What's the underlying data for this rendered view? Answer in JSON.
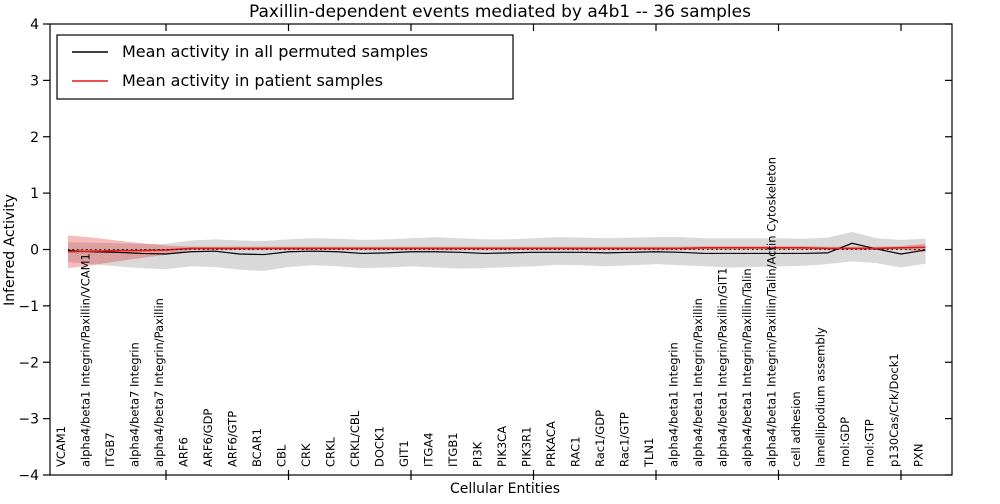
{
  "title": "Paxillin-dependent events mediated by a4b1 -- 36 samples",
  "chart_data": {
    "type": "line",
    "title": "Paxillin-dependent events mediated by a4b1 -- 36 samples",
    "xlabel": "Cellular Entities",
    "ylabel": "Inferred Activity",
    "ylim": [
      -4,
      4
    ],
    "yticks": [
      -4,
      -3,
      -2,
      -1,
      0,
      1,
      2,
      3,
      4
    ],
    "xtick_category_indices": [
      4,
      9,
      14,
      19,
      24,
      29,
      34
    ],
    "grid": false,
    "legend_position": "upper left",
    "zero_line": {
      "y": 0,
      "style": "dotted",
      "color": "#000000"
    },
    "categories": [
      "VCAM1",
      "alpha4/beta1 Integrin/Paxillin/VCAM1",
      "ITGB7",
      "alpha4/beta7 Integrin",
      "alpha4/beta7 Integrin/Paxillin",
      "ARF6",
      "ARF6/GDP",
      "ARF6/GTP",
      "BCAR1",
      "CBL",
      "CRK",
      "CRKL",
      "CRKL/CBL",
      "DOCK1",
      "GIT1",
      "ITGA4",
      "ITGB1",
      "PI3K",
      "PIK3CA",
      "PIK3R1",
      "PRKACA",
      "RAC1",
      "Rac1/GDP",
      "Rac1/GTP",
      "TLN1",
      "alpha4/beta1 Integrin",
      "alpha4/beta1 Integrin/Paxillin",
      "alpha4/beta1 Integrin/Paxillin/GIT1",
      "alpha4/beta1 Integrin/Paxillin/Talin",
      "alpha4/beta1 Integrin/Paxillin/Talin/Actin Cytoskeleton",
      "cell adhesion",
      "lamellipodium assembly",
      "mol:GDP",
      "mol:GTP",
      "p130Cas/Crk/Dock1",
      "PXN"
    ],
    "series": [
      {
        "name": "Mean activity in all permuted samples",
        "color": "#000000",
        "line_width": 1.2,
        "band_color": "rgba(128,128,128,0.30)",
        "values": [
          -0.02,
          -0.04,
          -0.05,
          -0.07,
          -0.08,
          -0.04,
          -0.03,
          -0.08,
          -0.09,
          -0.04,
          -0.03,
          -0.04,
          -0.07,
          -0.06,
          -0.04,
          -0.04,
          -0.05,
          -0.07,
          -0.06,
          -0.05,
          -0.05,
          -0.05,
          -0.06,
          -0.05,
          -0.04,
          -0.05,
          -0.07,
          -0.07,
          -0.07,
          -0.07,
          -0.07,
          -0.06,
          0.11,
          0.01,
          -0.08,
          -0.01
        ],
        "band_upper": [
          0.13,
          0.12,
          0.11,
          0.1,
          0.1,
          0.16,
          0.18,
          0.16,
          0.15,
          0.18,
          0.2,
          0.19,
          0.17,
          0.18,
          0.2,
          0.22,
          0.2,
          0.18,
          0.18,
          0.2,
          0.22,
          0.21,
          0.2,
          0.21,
          0.22,
          0.22,
          0.2,
          0.2,
          0.2,
          0.2,
          0.19,
          0.21,
          0.31,
          0.2,
          0.17,
          0.19
        ],
        "band_lower": [
          -0.22,
          -0.26,
          -0.3,
          -0.33,
          -0.35,
          -0.3,
          -0.31,
          -0.36,
          -0.38,
          -0.31,
          -0.28,
          -0.3,
          -0.33,
          -0.32,
          -0.3,
          -0.32,
          -0.34,
          -0.33,
          -0.31,
          -0.3,
          -0.27,
          -0.28,
          -0.3,
          -0.28,
          -0.26,
          -0.28,
          -0.3,
          -0.32,
          -0.31,
          -0.3,
          -0.29,
          -0.26,
          -0.21,
          -0.24,
          -0.32,
          -0.25
        ]
      },
      {
        "name": "Mean activity in patient samples",
        "color": "#e51717",
        "line_width": 1.6,
        "band_color": "rgba(229,30,30,0.30)",
        "values": [
          -0.04,
          -0.03,
          -0.02,
          -0.02,
          -0.01,
          0.02,
          0.02,
          0.02,
          0.02,
          0.02,
          0.02,
          0.02,
          0.02,
          0.02,
          0.02,
          0.02,
          0.02,
          0.02,
          0.02,
          0.02,
          0.02,
          0.02,
          0.02,
          0.02,
          0.02,
          0.02,
          0.03,
          0.03,
          0.03,
          0.03,
          0.03,
          0.02,
          0.02,
          0.02,
          0.03,
          0.04
        ],
        "band_upper": [
          0.25,
          0.21,
          0.16,
          0.11,
          0.07,
          0.05,
          0.05,
          0.05,
          0.05,
          0.05,
          0.05,
          0.05,
          0.05,
          0.05,
          0.05,
          0.05,
          0.05,
          0.05,
          0.05,
          0.05,
          0.05,
          0.05,
          0.05,
          0.05,
          0.05,
          0.05,
          0.06,
          0.06,
          0.06,
          0.06,
          0.06,
          0.05,
          0.05,
          0.05,
          0.06,
          0.1
        ],
        "band_lower": [
          -0.33,
          -0.28,
          -0.21,
          -0.15,
          -0.09,
          -0.01,
          -0.01,
          -0.01,
          -0.01,
          -0.01,
          -0.01,
          -0.01,
          -0.01,
          -0.01,
          -0.01,
          -0.01,
          -0.01,
          -0.01,
          -0.01,
          -0.01,
          -0.01,
          -0.01,
          -0.01,
          -0.01,
          -0.01,
          -0.01,
          0.0,
          0.0,
          0.0,
          0.0,
          0.0,
          -0.01,
          -0.01,
          -0.01,
          0.0,
          -0.04
        ]
      }
    ]
  },
  "legend": {
    "items": [
      {
        "label": "Mean activity in all permuted samples",
        "color": "#000000"
      },
      {
        "label": "Mean activity in patient samples",
        "color": "#e51717"
      }
    ]
  },
  "colors": {
    "background": "#ffffff",
    "spine": "#000000",
    "permuted_line": "#000000",
    "permuted_band": "rgba(128,128,128,0.30)",
    "patient_line": "#e51717",
    "patient_band": "rgba(229,30,30,0.30)"
  }
}
